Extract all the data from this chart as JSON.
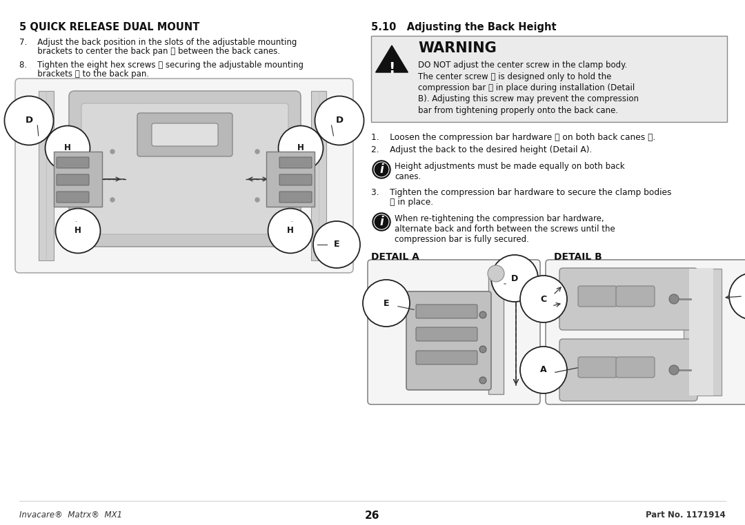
{
  "bg_color": "#ffffff",
  "left_heading": "5 QUICK RELEASE DUAL MOUNT",
  "right_heading": "5.10   Adjusting the Back Height",
  "footer_left": "Invacare®  Matrx®  MX1",
  "footer_center": "26",
  "footer_right": "Part No. 1171914",
  "warning_title": "WARNING",
  "warning_text_line1": "DO NOT adjust the center screw in the clamp body.",
  "warning_text_line2": "The center screw Ⓐ is designed only to hold the",
  "warning_text_line3": "compression bar Ⓑ in place during installation (Detail",
  "warning_text_line4": "B). Adjusting this screw may prevent the compression",
  "warning_text_line5": "bar from tightening properly onto the back cane.",
  "step7_line1": "7.    Adjust the back position in the slots of the adjustable mounting",
  "step7_line2": "       brackets to center the back pan ⓔ between the back canes.",
  "step8_line1": "8.    Tighten the eight hex screws ⓗ securing the adjustable mounting",
  "step8_line2": "       brackets ⓓ to the back pan.",
  "right_step1": "1.    Loosen the compression bar hardware ⓒ on both back canes ⓓ.",
  "right_step2": "2.    Adjust the back to the desired height (Detail A).",
  "info_text_1a": "Height adjustments must be made equally on both back",
  "info_text_1b": "canes.",
  "right_step3_line1": "3.    Tighten the compression bar hardware to secure the clamp bodies",
  "right_step3_line2": "       ⓔ in place.",
  "info_text_2a": "When re-tightening the compression bar hardware,",
  "info_text_2b": "alternate back and forth between the screws until the",
  "info_text_2c": "compression bar is fully secured.",
  "detail_a_label": "DETAIL A",
  "detail_b_label": "DETAIL B",
  "gray_light": "#d8d8d8",
  "gray_mid": "#b0b0b0",
  "gray_dark": "#888888",
  "gray_bg": "#e8e8e8",
  "warn_bg": "#ebebeb",
  "col_divider": 510
}
